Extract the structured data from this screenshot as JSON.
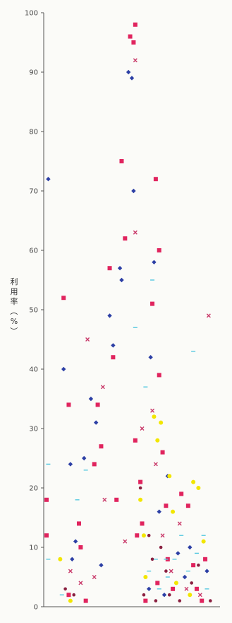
{
  "chart_data": {
    "type": "scatter",
    "ylabel_chars": [
      "利",
      "用",
      "率",
      "（",
      "%",
      "）"
    ],
    "ylim": [
      0,
      100
    ],
    "xlim": [
      0,
      100
    ],
    "y_ticks": [
      0,
      10,
      20,
      30,
      40,
      50,
      60,
      70,
      80,
      90,
      100
    ],
    "grid": false,
    "legend": "none",
    "series": [
      {
        "marker": "square",
        "color": "#e0245e",
        "points": [
          {
            "x": 0,
            "y": 12
          },
          {
            "x": 0,
            "y": 18
          },
          {
            "x": 10,
            "y": 52
          },
          {
            "x": 13,
            "y": 34
          },
          {
            "x": 13,
            "y": 2
          },
          {
            "x": 19,
            "y": 14
          },
          {
            "x": 20,
            "y": 10
          },
          {
            "x": 23,
            "y": 1
          },
          {
            "x": 28,
            "y": 24
          },
          {
            "x": 30,
            "y": 34
          },
          {
            "x": 32,
            "y": 27
          },
          {
            "x": 37,
            "y": 57
          },
          {
            "x": 39,
            "y": 42
          },
          {
            "x": 41,
            "y": 18
          },
          {
            "x": 44,
            "y": 75
          },
          {
            "x": 46,
            "y": 62
          },
          {
            "x": 49,
            "y": 96
          },
          {
            "x": 51,
            "y": 95
          },
          {
            "x": 52,
            "y": 98
          },
          {
            "x": 52,
            "y": 28
          },
          {
            "x": 53,
            "y": 12
          },
          {
            "x": 55,
            "y": 21
          },
          {
            "x": 56,
            "y": 14
          },
          {
            "x": 62,
            "y": 51
          },
          {
            "x": 64,
            "y": 72
          },
          {
            "x": 66,
            "y": 60
          },
          {
            "x": 66,
            "y": 39
          },
          {
            "x": 68,
            "y": 26
          },
          {
            "x": 70,
            "y": 17
          },
          {
            "x": 71,
            "y": 8
          },
          {
            "x": 79,
            "y": 19
          },
          {
            "x": 83,
            "y": 17
          },
          {
            "x": 86,
            "y": 7
          },
          {
            "x": 93,
            "y": 8
          },
          {
            "x": 58,
            "y": 1
          },
          {
            "x": 65,
            "y": 4
          },
          {
            "x": 74,
            "y": 3
          },
          {
            "x": 88,
            "y": 3
          },
          {
            "x": 91,
            "y": 1
          }
        ]
      },
      {
        "marker": "diamond",
        "color": "#2c3fa5",
        "points": [
          {
            "x": 1,
            "y": 72
          },
          {
            "x": 10,
            "y": 40
          },
          {
            "x": 14,
            "y": 24
          },
          {
            "x": 15,
            "y": 8
          },
          {
            "x": 17,
            "y": 11
          },
          {
            "x": 22,
            "y": 25
          },
          {
            "x": 26,
            "y": 35
          },
          {
            "x": 29,
            "y": 31
          },
          {
            "x": 32,
            "y": 7
          },
          {
            "x": 37,
            "y": 49
          },
          {
            "x": 39,
            "y": 44
          },
          {
            "x": 43,
            "y": 57
          },
          {
            "x": 44,
            "y": 55
          },
          {
            "x": 48,
            "y": 90
          },
          {
            "x": 50,
            "y": 89
          },
          {
            "x": 51,
            "y": 70
          },
          {
            "x": 61,
            "y": 42
          },
          {
            "x": 63,
            "y": 58
          },
          {
            "x": 66,
            "y": 16
          },
          {
            "x": 71,
            "y": 22
          },
          {
            "x": 77,
            "y": 9
          },
          {
            "x": 84,
            "y": 10
          },
          {
            "x": 60,
            "y": 3
          },
          {
            "x": 69,
            "y": 2
          },
          {
            "x": 81,
            "y": 5
          },
          {
            "x": 94,
            "y": 6
          }
        ]
      },
      {
        "marker": "x",
        "color": "#c93a6a",
        "points": [
          {
            "x": 14,
            "y": 6
          },
          {
            "x": 20,
            "y": 4
          },
          {
            "x": 24,
            "y": 45
          },
          {
            "x": 28,
            "y": 5
          },
          {
            "x": 33,
            "y": 37
          },
          {
            "x": 34,
            "y": 18
          },
          {
            "x": 52,
            "y": 63
          },
          {
            "x": 52,
            "y": 92
          },
          {
            "x": 56,
            "y": 30
          },
          {
            "x": 62,
            "y": 33
          },
          {
            "x": 64,
            "y": 24
          },
          {
            "x": 68,
            "y": 12
          },
          {
            "x": 73,
            "y": 6
          },
          {
            "x": 82,
            "y": 3
          },
          {
            "x": 95,
            "y": 49
          },
          {
            "x": 90,
            "y": 2
          },
          {
            "x": 46,
            "y": 11
          },
          {
            "x": 78,
            "y": 14
          }
        ]
      },
      {
        "marker": "circle",
        "color": "#f2e600",
        "points": [
          {
            "x": 8,
            "y": 8
          },
          {
            "x": 14,
            "y": 1
          },
          {
            "x": 55,
            "y": 18
          },
          {
            "x": 57,
            "y": 12
          },
          {
            "x": 63,
            "y": 32
          },
          {
            "x": 65,
            "y": 28
          },
          {
            "x": 67,
            "y": 31
          },
          {
            "x": 72,
            "y": 22
          },
          {
            "x": 74,
            "y": 16
          },
          {
            "x": 86,
            "y": 21
          },
          {
            "x": 89,
            "y": 20
          },
          {
            "x": 92,
            "y": 11
          },
          {
            "x": 58,
            "y": 5
          },
          {
            "x": 76,
            "y": 4
          },
          {
            "x": 84,
            "y": 2
          }
        ]
      },
      {
        "marker": "circle-small",
        "color": "#8a2040",
        "points": [
          {
            "x": 11,
            "y": 3
          },
          {
            "x": 16,
            "y": 2
          },
          {
            "x": 55,
            "y": 20
          },
          {
            "x": 60,
            "y": 12
          },
          {
            "x": 62,
            "y": 8
          },
          {
            "x": 67,
            "y": 10
          },
          {
            "x": 70,
            "y": 6
          },
          {
            "x": 72,
            "y": 2
          },
          {
            "x": 78,
            "y": 1
          },
          {
            "x": 85,
            "y": 4
          },
          {
            "x": 89,
            "y": 7
          },
          {
            "x": 96,
            "y": 1
          },
          {
            "x": 57,
            "y": 2
          },
          {
            "x": 64,
            "y": 1
          }
        ]
      },
      {
        "marker": "dash",
        "color": "#55c8e0",
        "points": [
          {
            "x": 1,
            "y": 24
          },
          {
            "x": 1,
            "y": 8
          },
          {
            "x": 9,
            "y": 2
          },
          {
            "x": 18,
            "y": 18
          },
          {
            "x": 23,
            "y": 23
          },
          {
            "x": 62,
            "y": 55
          },
          {
            "x": 52,
            "y": 47
          },
          {
            "x": 58,
            "y": 37
          },
          {
            "x": 86,
            "y": 43
          },
          {
            "x": 64,
            "y": 8
          },
          {
            "x": 70,
            "y": 8
          },
          {
            "x": 75,
            "y": 8
          },
          {
            "x": 79,
            "y": 12
          },
          {
            "x": 92,
            "y": 12
          },
          {
            "x": 60,
            "y": 6
          },
          {
            "x": 71,
            "y": 5
          },
          {
            "x": 83,
            "y": 6
          },
          {
            "x": 94,
            "y": 3
          },
          {
            "x": 66,
            "y": 3
          },
          {
            "x": 88,
            "y": 9
          }
        ]
      }
    ]
  }
}
